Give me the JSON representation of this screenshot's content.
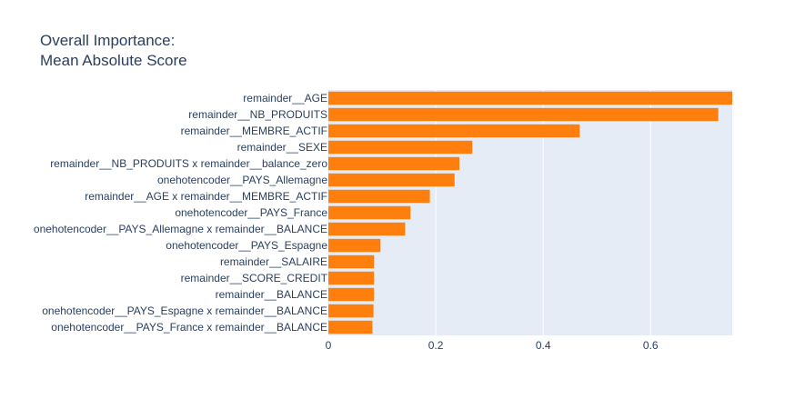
{
  "chart_data": {
    "type": "bar",
    "orientation": "horizontal",
    "title": "Overall Importance:",
    "subtitle": "Mean Absolute Score",
    "xlabel": "",
    "ylabel": "",
    "xlim": [
      0,
      0.752
    ],
    "xticks": [
      0,
      0.2,
      0.4,
      0.6
    ],
    "xtick_labels": [
      "0",
      "0.2",
      "0.4",
      "0.6"
    ],
    "grid": true,
    "bar_color": "#ff7f0e",
    "plot_bg_color": "#e5ecf6",
    "categories": [
      "remainder__AGE",
      "remainder__NB_PRODUITS",
      "remainder__MEMBRE_ACTIF",
      "remainder__SEXE",
      "remainder__NB_PRODUITS x remainder__balance_zero",
      "onehotencoder__PAYS_Allemagne",
      "remainder__AGE x remainder__MEMBRE_ACTIF",
      "onehotencoder__PAYS_France",
      "onehotencoder__PAYS_Allemagne x remainder__BALANCE",
      "onehotencoder__PAYS_Espagne",
      "remainder__SALAIRE",
      "remainder__SCORE_CREDIT",
      "remainder__BALANCE",
      "onehotencoder__PAYS_Espagne x remainder__BALANCE",
      "onehotencoder__PAYS_France x remainder__BALANCE"
    ],
    "values": [
      0.752,
      0.726,
      0.468,
      0.268,
      0.244,
      0.235,
      0.189,
      0.153,
      0.143,
      0.097,
      0.085,
      0.085,
      0.085,
      0.084,
      0.082
    ]
  }
}
